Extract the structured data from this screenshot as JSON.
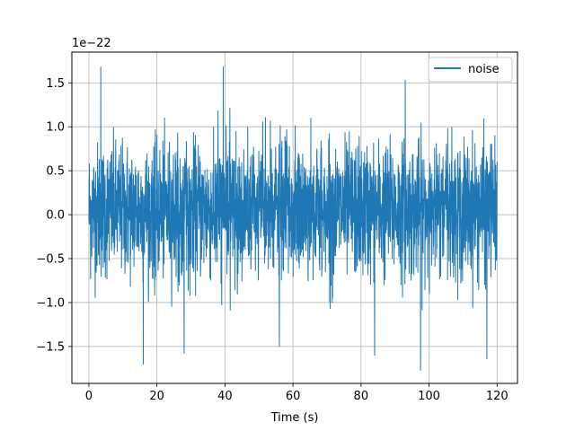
{
  "chart_data": {
    "type": "line",
    "xlabel": "Time (s)",
    "ylabel": "",
    "y_offset_text": "1e−22",
    "xlim": [
      -5,
      126
    ],
    "ylim": [
      -1.92,
      1.85
    ],
    "x_ticks": [
      0,
      20,
      40,
      60,
      80,
      100,
      120
    ],
    "x_tick_labels": [
      "0",
      "20",
      "40",
      "60",
      "80",
      "100",
      "120"
    ],
    "y_ticks": [
      -1.5,
      -1.0,
      -0.5,
      0.0,
      0.5,
      1.0,
      1.5
    ],
    "y_tick_labels": [
      "−1.5",
      "−1.0",
      "−0.5",
      "0.0",
      "0.5",
      "1.0",
      "1.5"
    ],
    "grid": true,
    "legend": {
      "position": "top-right",
      "entries": [
        "noise"
      ]
    },
    "series": [
      {
        "name": "noise",
        "color": "#1f77b4",
        "x_range": [
          0,
          120
        ],
        "typical_envelope": [
          -0.85,
          0.95
        ],
        "peaks": [
          {
            "x": 3.5,
            "y": 1.68
          },
          {
            "x": 16,
            "y": -1.7
          },
          {
            "x": 28,
            "y": -1.58
          },
          {
            "x": 39.5,
            "y": 1.68
          },
          {
            "x": 56,
            "y": -1.5
          },
          {
            "x": 84,
            "y": -1.6
          },
          {
            "x": 93,
            "y": 1.53
          },
          {
            "x": 97.5,
            "y": -1.77
          },
          {
            "x": 117,
            "y": -1.64
          }
        ]
      }
    ]
  }
}
